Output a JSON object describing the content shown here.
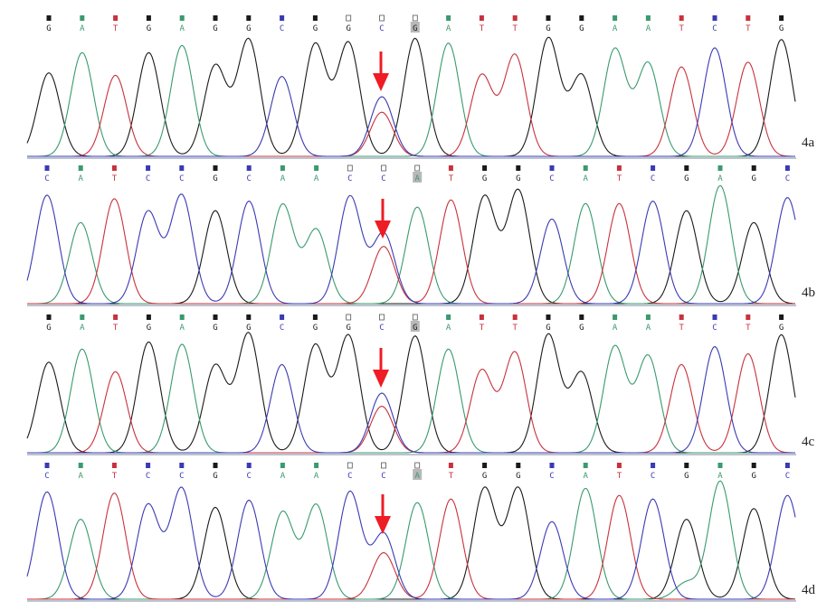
{
  "colors": {
    "G": "#1a1a1a",
    "A": "#3a9a6e",
    "T": "#c8323c",
    "C": "#3a3ab4",
    "arrow": "#ee1c24",
    "baseline": "#7a8aa0"
  },
  "chart_data": {
    "type": "line",
    "subtype": "dna-sequencing-chromatogram",
    "panels": [
      {
        "label": "4a",
        "bases": [
          "G",
          "A",
          "T",
          "G",
          "A",
          "G",
          "G",
          "C",
          "G",
          "G",
          "C",
          "G",
          "A",
          "T",
          "T",
          "G",
          "G",
          "A",
          "A",
          "T",
          "C",
          "T",
          "G"
        ],
        "peak_heights": [
          70,
          87,
          68,
          87,
          93,
          76,
          98,
          67,
          94,
          95,
          50,
          99,
          95,
          68,
          85,
          99,
          68,
          90,
          78,
          75,
          91,
          79,
          98
        ],
        "secondary_peaks": [
          {
            "index": 10,
            "base": "T",
            "height": 37
          }
        ],
        "arrow_index": 10
      },
      {
        "label": "4b",
        "bases": [
          "C",
          "A",
          "T",
          "C",
          "C",
          "G",
          "C",
          "A",
          "A",
          "C",
          "C",
          "A",
          "T",
          "G",
          "G",
          "C",
          "A",
          "T",
          "C",
          "G",
          "A",
          "G",
          "C"
        ],
        "peak_heights": [
          91,
          68,
          88,
          77,
          91,
          78,
          86,
          83,
          62,
          90,
          59,
          81,
          87,
          90,
          95,
          71,
          84,
          84,
          86,
          78,
          99,
          68,
          89
        ],
        "secondary_peaks": [
          {
            "index": 10,
            "base": "T",
            "height": 48
          }
        ],
        "arrow_index": 10
      },
      {
        "label": "4c",
        "bases": [
          "G",
          "A",
          "T",
          "G",
          "A",
          "G",
          "G",
          "C",
          "G",
          "G",
          "C",
          "G",
          "A",
          "T",
          "T",
          "G",
          "G",
          "A",
          "A",
          "T",
          "C",
          "T",
          "G"
        ],
        "peak_heights": [
          76,
          87,
          68,
          93,
          91,
          73,
          100,
          74,
          90,
          98,
          50,
          98,
          87,
          69,
          84,
          99,
          67,
          89,
          81,
          74,
          89,
          83,
          99
        ],
        "secondary_peaks": [
          {
            "index": 10,
            "base": "T",
            "height": 39
          }
        ],
        "arrow_index": 10
      },
      {
        "label": "4d",
        "bases": [
          "C",
          "A",
          "T",
          "C",
          "C",
          "G",
          "C",
          "A",
          "A",
          "C",
          "C",
          "A",
          "T",
          "G",
          "G",
          "C",
          "A",
          "T",
          "C",
          "G",
          "A",
          "G",
          "C"
        ],
        "peak_heights": [
          90,
          67,
          89,
          79,
          93,
          77,
          83,
          73,
          79,
          90,
          55,
          81,
          84,
          93,
          93,
          65,
          93,
          87,
          84,
          67,
          99,
          76,
          87
        ],
        "secondary_peaks": [
          {
            "index": 10,
            "base": "T",
            "height": 39
          },
          {
            "index": 19,
            "base": "A",
            "height": 14
          }
        ],
        "arrow_index": 10
      }
    ]
  }
}
